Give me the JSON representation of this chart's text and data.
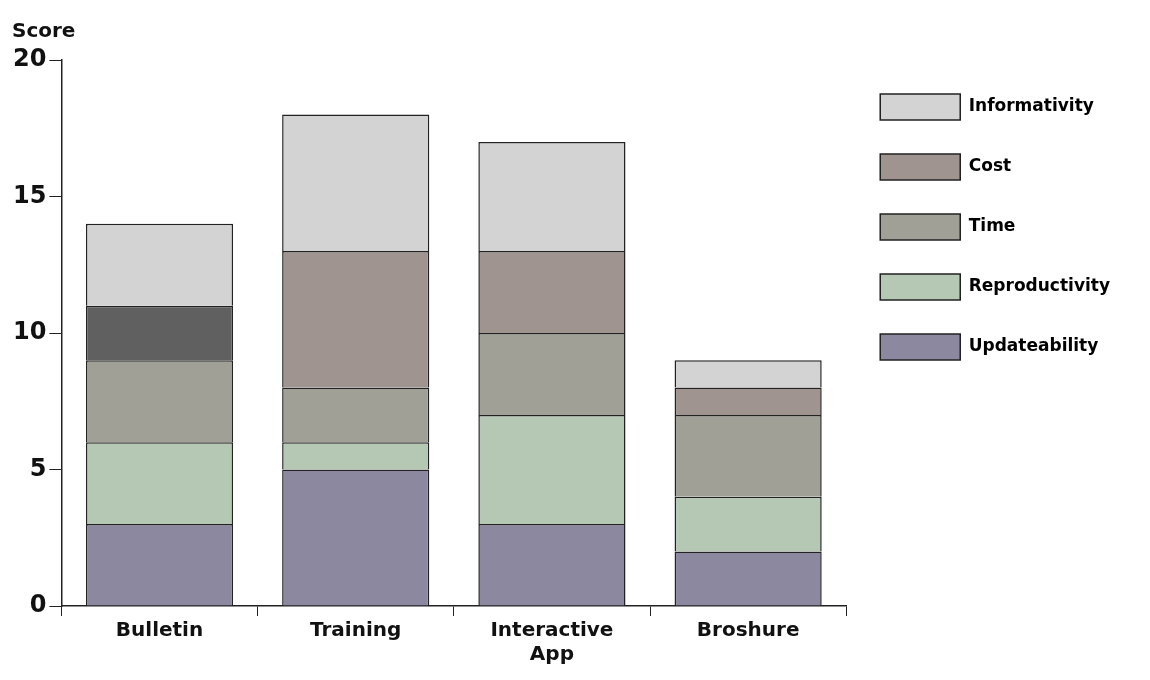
{
  "chart_data": {
    "type": "bar",
    "stacked": true,
    "ylabel": "Score",
    "categories": [
      "Bulletin",
      "Training",
      "Interactive App",
      "Broshure"
    ],
    "ylim": [
      0,
      20
    ],
    "yticks": [
      0,
      5,
      10,
      15,
      20
    ],
    "grid": false,
    "legend": "top right",
    "series": [
      {
        "name": "Updateability",
        "color": "#8c88a0",
        "values": [
          3,
          5,
          3,
          2
        ]
      },
      {
        "name": "Reproductivity",
        "color": "#b4c8b4",
        "values": [
          3,
          1,
          4,
          2
        ]
      },
      {
        "name": "Time",
        "color": "#a0a096",
        "values": [
          3,
          2,
          3,
          3
        ]
      },
      {
        "name": "Cost",
        "color": "#a09490",
        "colors": [
          "#606060",
          "#a09490",
          "#a09490",
          "#a09490"
        ],
        "values": [
          2,
          5,
          3,
          1
        ]
      },
      {
        "name": "Informativity",
        "color": "#d3d3d3",
        "values": [
          3,
          5,
          4,
          1
        ]
      }
    ]
  }
}
